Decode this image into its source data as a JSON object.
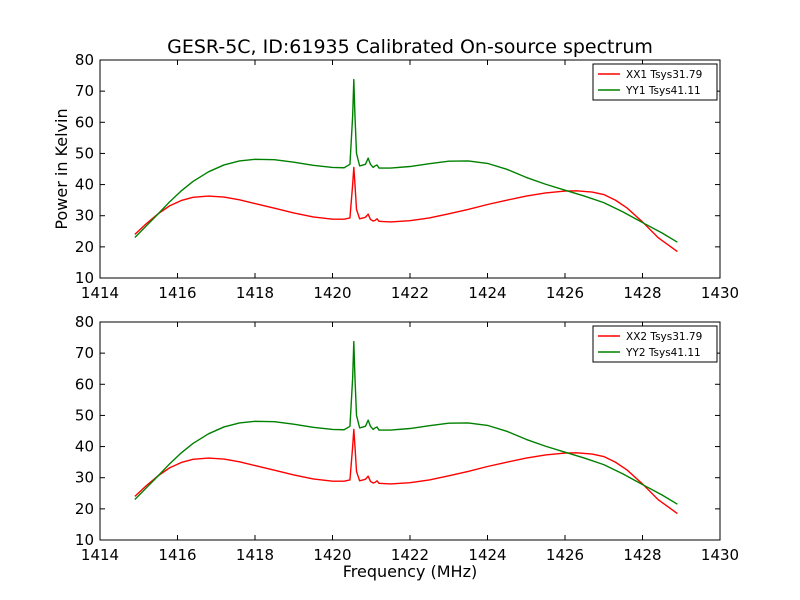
{
  "figure": {
    "title": "GESR-5C, ID:61935 Calibrated On-source spectrum",
    "xlabel": "Frequency (MHz)",
    "ylabel": "Power in Kelvin"
  },
  "chart_data": [
    {
      "type": "line",
      "xlim": [
        1414,
        1430
      ],
      "ylim": [
        10,
        80
      ],
      "xticks": [
        1414,
        1416,
        1418,
        1420,
        1422,
        1424,
        1426,
        1428,
        1430
      ],
      "yticks": [
        10,
        20,
        30,
        40,
        50,
        60,
        70,
        80
      ],
      "legend_position": "top-right",
      "grid": false,
      "series": [
        {
          "name": "XX1 Tsys31.79",
          "color": "#ff0000",
          "x": [
            1414.9,
            1415.2,
            1415.5,
            1415.8,
            1416.1,
            1416.4,
            1416.8,
            1417.2,
            1417.6,
            1418.0,
            1418.5,
            1419.0,
            1419.5,
            1420.0,
            1420.3,
            1420.45,
            1420.52,
            1420.55,
            1420.58,
            1420.62,
            1420.7,
            1420.85,
            1420.92,
            1420.98,
            1421.05,
            1421.1,
            1421.15,
            1421.2,
            1421.5,
            1422.0,
            1422.5,
            1423.0,
            1423.5,
            1424.0,
            1424.5,
            1425.0,
            1425.5,
            1426.0,
            1426.3,
            1426.7,
            1427.0,
            1427.3,
            1427.6,
            1428.0,
            1428.4,
            1428.9
          ],
          "y": [
            24.0,
            27.5,
            30.6,
            33.2,
            34.9,
            35.9,
            36.3,
            36.0,
            35.1,
            33.9,
            32.4,
            30.9,
            29.6,
            28.9,
            28.9,
            29.3,
            40.0,
            45.5,
            40.0,
            32.0,
            29.0,
            29.5,
            30.5,
            28.8,
            28.3,
            28.5,
            29.0,
            28.2,
            28.0,
            28.4,
            29.3,
            30.6,
            32.0,
            33.6,
            35.0,
            36.3,
            37.3,
            37.9,
            38.0,
            37.6,
            36.8,
            35.0,
            32.5,
            28.0,
            23.0,
            18.5
          ]
        },
        {
          "name": "YY1 Tsys41.11",
          "color": "#008000",
          "x": [
            1414.9,
            1415.2,
            1415.5,
            1415.8,
            1416.1,
            1416.4,
            1416.8,
            1417.2,
            1417.6,
            1418.0,
            1418.5,
            1419.0,
            1419.5,
            1420.0,
            1420.3,
            1420.45,
            1420.52,
            1420.55,
            1420.58,
            1420.62,
            1420.7,
            1420.85,
            1420.92,
            1420.98,
            1421.05,
            1421.1,
            1421.15,
            1421.2,
            1421.5,
            1422.0,
            1422.5,
            1423.0,
            1423.5,
            1424.0,
            1424.5,
            1425.0,
            1425.5,
            1426.0,
            1426.5,
            1427.0,
            1427.5,
            1428.0,
            1428.5,
            1428.9
          ],
          "y": [
            23.0,
            26.8,
            30.6,
            34.5,
            38.0,
            41.0,
            44.1,
            46.3,
            47.6,
            48.1,
            48.0,
            47.2,
            46.2,
            45.5,
            45.4,
            46.5,
            62.0,
            73.7,
            62.0,
            50.0,
            46.0,
            46.5,
            48.5,
            46.5,
            45.5,
            46.0,
            46.3,
            45.3,
            45.3,
            45.8,
            46.7,
            47.5,
            47.6,
            46.8,
            44.9,
            42.3,
            40.1,
            38.2,
            36.3,
            34.2,
            31.2,
            27.8,
            24.5,
            21.5
          ]
        }
      ]
    },
    {
      "type": "line",
      "xlim": [
        1414,
        1430
      ],
      "ylim": [
        10,
        80
      ],
      "xticks": [
        1414,
        1416,
        1418,
        1420,
        1422,
        1424,
        1426,
        1428,
        1430
      ],
      "yticks": [
        10,
        20,
        30,
        40,
        50,
        60,
        70,
        80
      ],
      "legend_position": "top-right",
      "grid": false,
      "series": [
        {
          "name": "XX2 Tsys31.79",
          "color": "#ff0000",
          "x": [
            1414.9,
            1415.2,
            1415.5,
            1415.8,
            1416.1,
            1416.4,
            1416.8,
            1417.2,
            1417.6,
            1418.0,
            1418.5,
            1419.0,
            1419.5,
            1420.0,
            1420.3,
            1420.45,
            1420.52,
            1420.55,
            1420.58,
            1420.62,
            1420.7,
            1420.85,
            1420.92,
            1420.98,
            1421.05,
            1421.1,
            1421.15,
            1421.2,
            1421.5,
            1422.0,
            1422.5,
            1423.0,
            1423.5,
            1424.0,
            1424.5,
            1425.0,
            1425.5,
            1426.0,
            1426.3,
            1426.7,
            1427.0,
            1427.3,
            1427.6,
            1428.0,
            1428.4,
            1428.9
          ],
          "y": [
            24.0,
            27.5,
            30.6,
            33.2,
            34.9,
            35.9,
            36.3,
            36.0,
            35.1,
            33.9,
            32.4,
            30.9,
            29.6,
            28.9,
            28.9,
            29.3,
            40.0,
            45.5,
            40.0,
            32.0,
            29.0,
            29.5,
            30.5,
            28.8,
            28.3,
            28.5,
            29.0,
            28.2,
            28.0,
            28.4,
            29.3,
            30.6,
            32.0,
            33.6,
            35.0,
            36.3,
            37.3,
            37.9,
            38.0,
            37.6,
            36.8,
            35.0,
            32.5,
            28.0,
            23.0,
            18.5
          ]
        },
        {
          "name": "YY2 Tsys41.11",
          "color": "#008000",
          "x": [
            1414.9,
            1415.2,
            1415.5,
            1415.8,
            1416.1,
            1416.4,
            1416.8,
            1417.2,
            1417.6,
            1418.0,
            1418.5,
            1419.0,
            1419.5,
            1420.0,
            1420.3,
            1420.45,
            1420.52,
            1420.55,
            1420.58,
            1420.62,
            1420.7,
            1420.85,
            1420.92,
            1420.98,
            1421.05,
            1421.1,
            1421.15,
            1421.2,
            1421.5,
            1422.0,
            1422.5,
            1423.0,
            1423.5,
            1424.0,
            1424.5,
            1425.0,
            1425.5,
            1426.0,
            1426.5,
            1427.0,
            1427.5,
            1428.0,
            1428.5,
            1428.9
          ],
          "y": [
            23.0,
            26.8,
            30.6,
            34.5,
            38.0,
            41.0,
            44.1,
            46.3,
            47.6,
            48.1,
            48.0,
            47.2,
            46.2,
            45.5,
            45.4,
            46.5,
            62.0,
            73.7,
            62.0,
            50.0,
            46.0,
            46.5,
            48.5,
            46.5,
            45.5,
            46.0,
            46.3,
            45.3,
            45.3,
            45.8,
            46.7,
            47.5,
            47.6,
            46.8,
            44.9,
            42.3,
            40.1,
            38.2,
            36.3,
            34.2,
            31.2,
            27.8,
            24.5,
            21.5
          ]
        }
      ]
    }
  ]
}
